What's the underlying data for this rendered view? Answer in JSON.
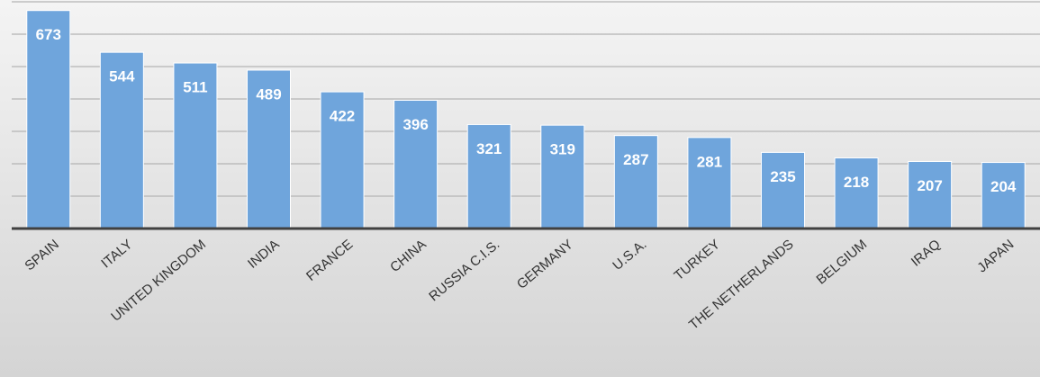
{
  "chart_data": {
    "type": "bar",
    "categories": [
      "SPAIN",
      "ITALY",
      "UNITED KINGDOM",
      "INDIA",
      "FRANCE",
      "CHINA",
      "RUSSIA C.I.S.",
      "GERMANY",
      "U.S.A.",
      "TURKEY",
      "THE NETHERLANDS",
      "BELGIUM",
      "IRAQ",
      "JAPAN"
    ],
    "values": [
      673,
      544,
      511,
      489,
      422,
      396,
      321,
      319,
      287,
      281,
      235,
      218,
      207,
      204
    ],
    "color": "#6fa5dc",
    "ylim": [
      0,
      700
    ],
    "yticks": [
      0,
      100,
      200,
      300,
      400,
      500,
      600,
      700
    ],
    "grid": true
  }
}
